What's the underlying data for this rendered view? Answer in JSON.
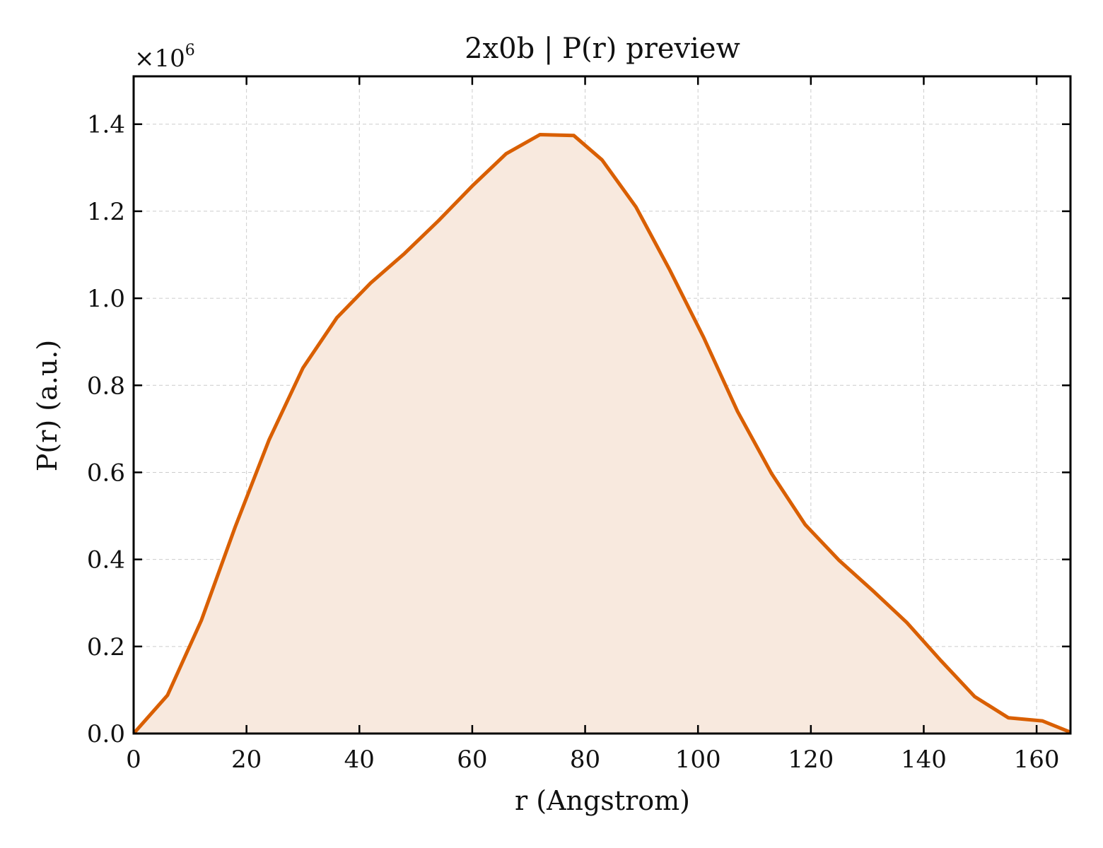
{
  "chart_data": {
    "type": "area",
    "title": "2x0b | P(r) preview",
    "xlabel": "r (Angstrom)",
    "ylabel": "P(r) (a.u.)",
    "y_offset_label": {
      "base": "×10",
      "exponent": "6"
    },
    "xlim": [
      0,
      166
    ],
    "ylim": [
      0,
      1.51
    ],
    "x_ticks": [
      0,
      20,
      40,
      60,
      80,
      100,
      120,
      140,
      160
    ],
    "y_ticks": [
      0.0,
      0.2,
      0.4,
      0.6,
      0.8,
      1.0,
      1.2,
      1.4
    ],
    "x_tick_labels": [
      "0",
      "20",
      "40",
      "60",
      "80",
      "100",
      "120",
      "140",
      "160"
    ],
    "y_tick_labels": [
      "0.0",
      "0.2",
      "0.4",
      "0.6",
      "0.8",
      "1.0",
      "1.2",
      "1.4"
    ],
    "grid": true,
    "series": [
      {
        "color": "#d95f02",
        "fill_color": "#f8e9de",
        "x": [
          0,
          6,
          12,
          18,
          24,
          30,
          36,
          42,
          48,
          54,
          60,
          66,
          72,
          78,
          83,
          89,
          95,
          101,
          107,
          113,
          119,
          125,
          131,
          137,
          143,
          149,
          155,
          161,
          166
        ],
        "y": [
          0.0,
          0.088,
          0.26,
          0.475,
          0.675,
          0.84,
          0.955,
          1.035,
          1.103,
          1.178,
          1.258,
          1.332,
          1.376,
          1.374,
          1.318,
          1.21,
          1.065,
          0.91,
          0.74,
          0.598,
          0.48,
          0.398,
          0.328,
          0.255,
          0.168,
          0.085,
          0.036,
          0.029,
          0.003
        ]
      }
    ]
  }
}
